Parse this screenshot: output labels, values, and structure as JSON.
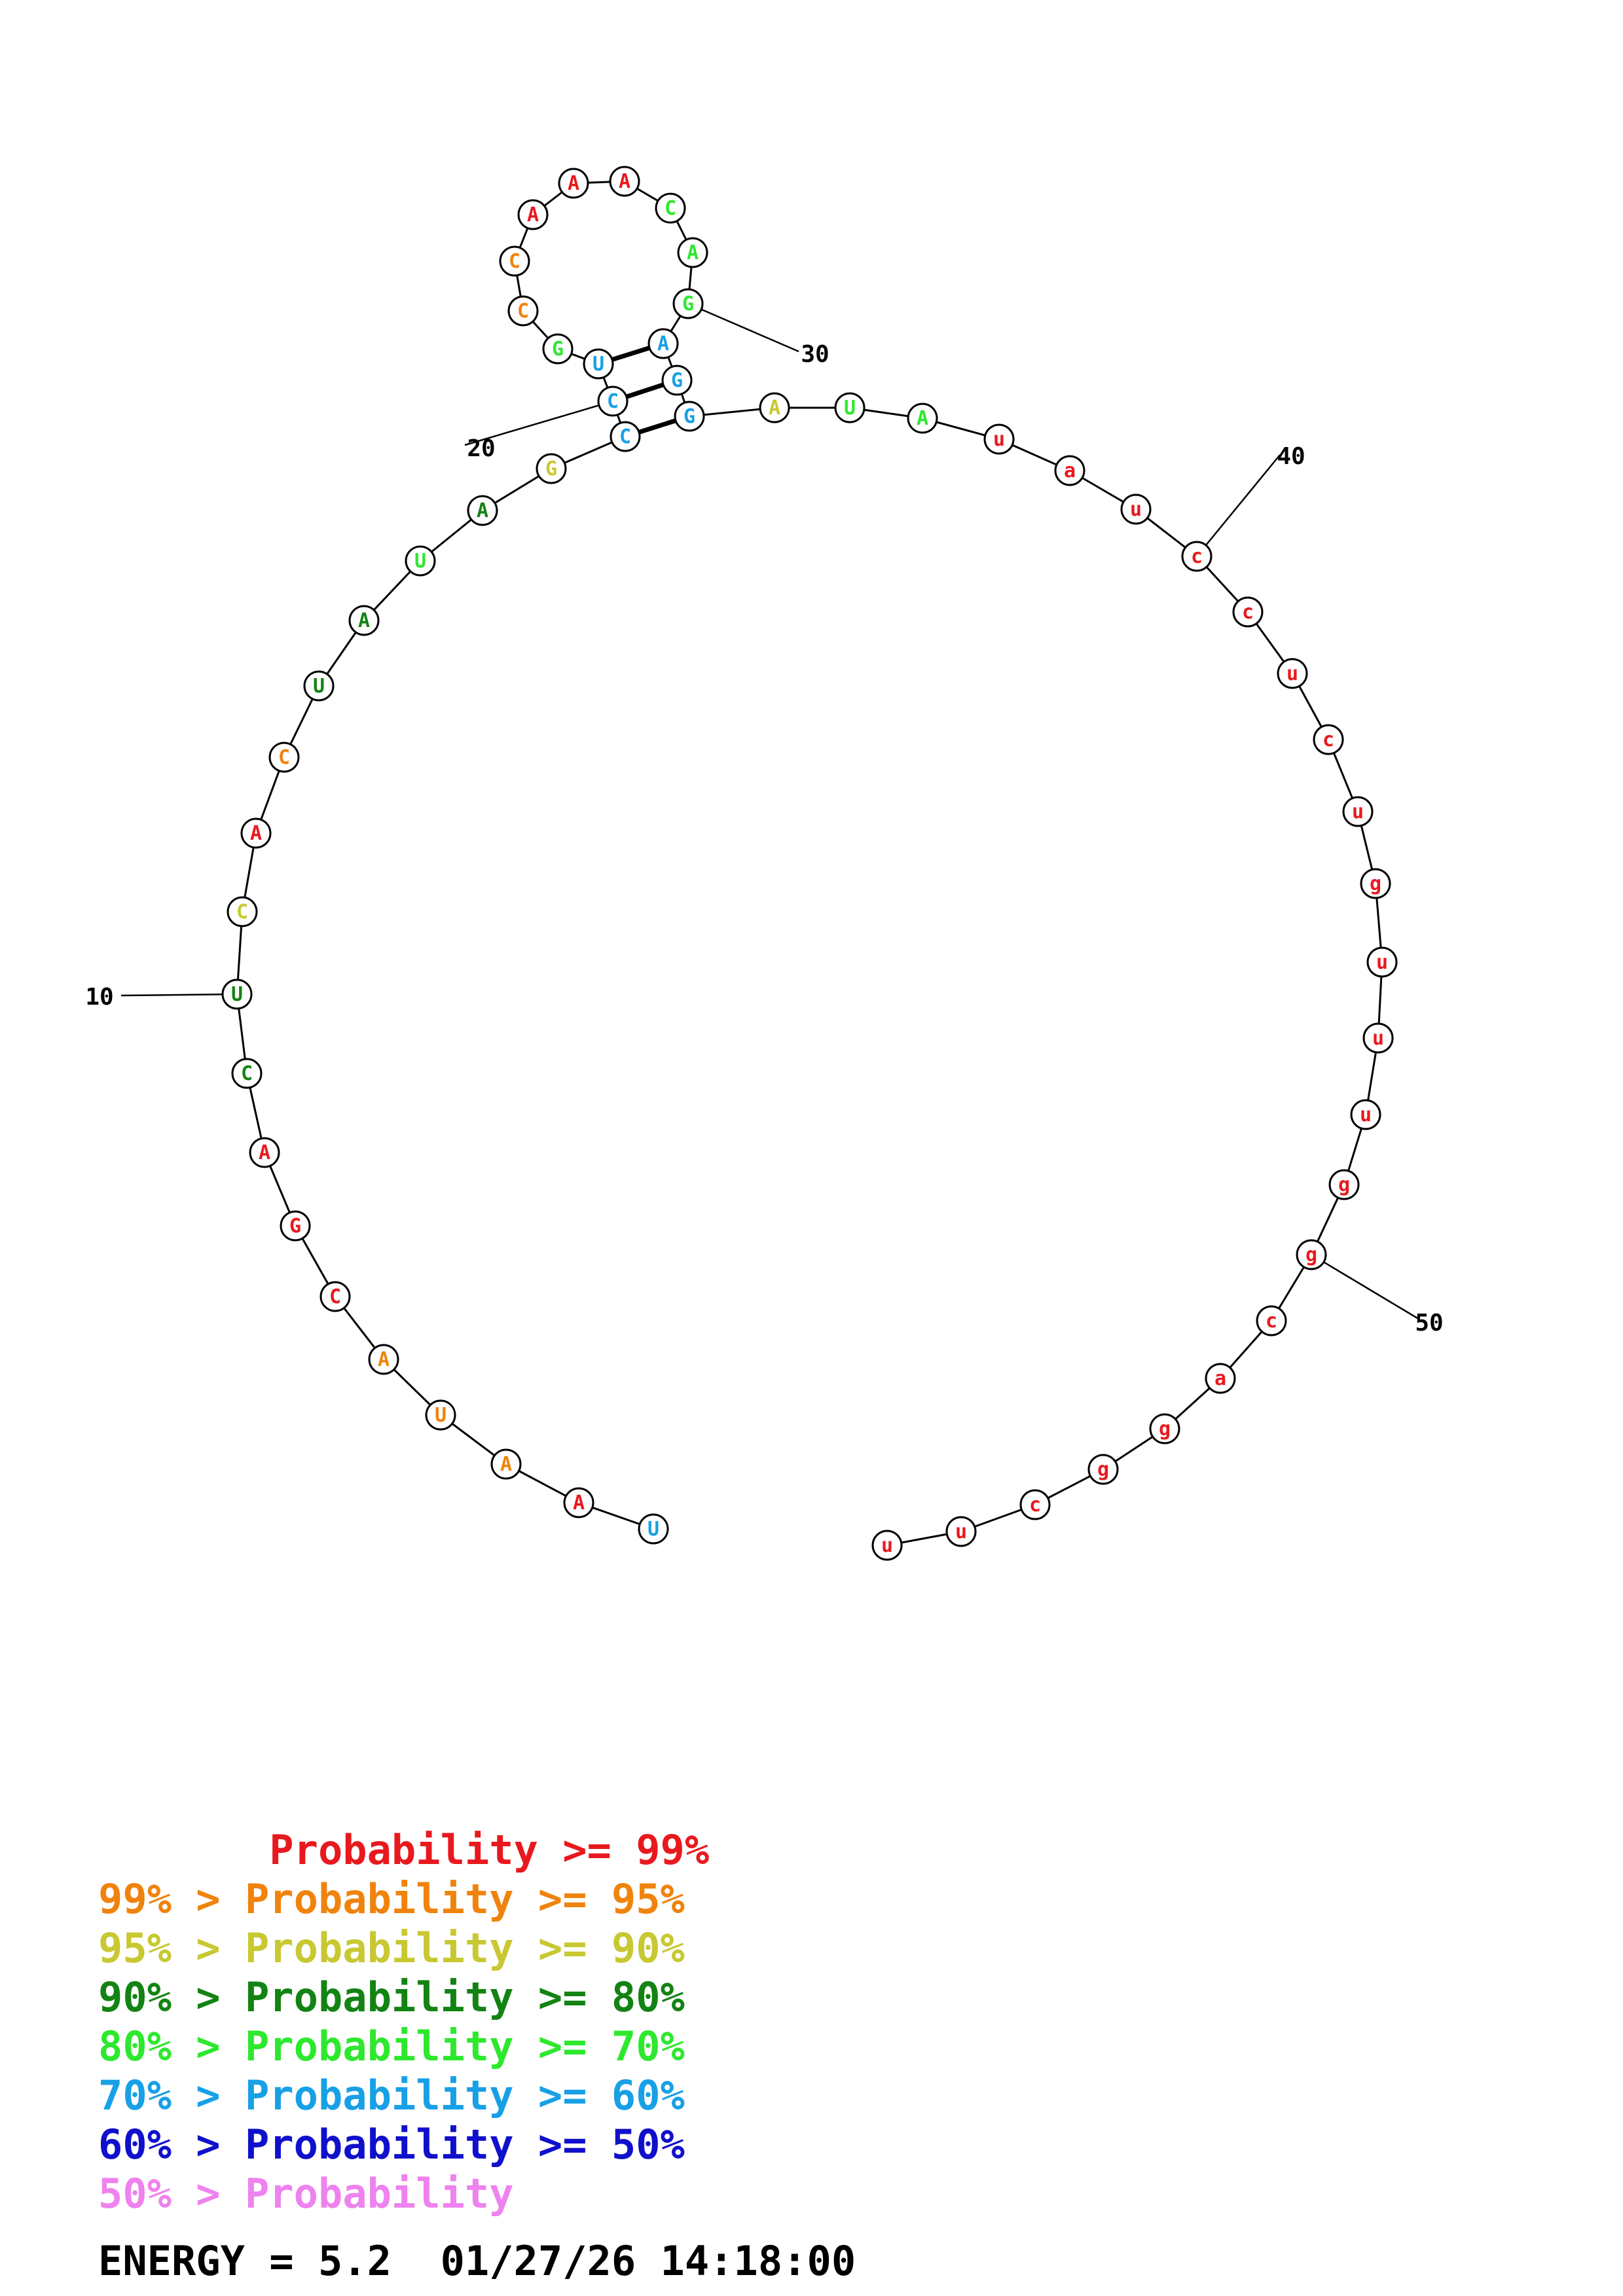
{
  "colors": {
    "p99": "#e8191e",
    "p95": "#f0830d",
    "p90": "#c8c832",
    "p80": "#138313",
    "p70": "#2ee82e",
    "p60": "#18a0e6",
    "p50": "#1010cc",
    "plow": "#ee82ee"
  },
  "sequence": [
    {
      "n": 1,
      "base": "U",
      "prob": "p60"
    },
    {
      "n": 2,
      "base": "A",
      "prob": "p99"
    },
    {
      "n": 3,
      "base": "A",
      "prob": "p95"
    },
    {
      "n": 4,
      "base": "U",
      "prob": "p95"
    },
    {
      "n": 5,
      "base": "A",
      "prob": "p95"
    },
    {
      "n": 6,
      "base": "C",
      "prob": "p99"
    },
    {
      "n": 7,
      "base": "G",
      "prob": "p99"
    },
    {
      "n": 8,
      "base": "A",
      "prob": "p99"
    },
    {
      "n": 9,
      "base": "C",
      "prob": "p80"
    },
    {
      "n": 10,
      "base": "U",
      "prob": "p80"
    },
    {
      "n": 11,
      "base": "C",
      "prob": "p90"
    },
    {
      "n": 12,
      "base": "A",
      "prob": "p99"
    },
    {
      "n": 13,
      "base": "C",
      "prob": "p95"
    },
    {
      "n": 14,
      "base": "U",
      "prob": "p80"
    },
    {
      "n": 15,
      "base": "A",
      "prob": "p80"
    },
    {
      "n": 16,
      "base": "U",
      "prob": "p70"
    },
    {
      "n": 17,
      "base": "A",
      "prob": "p80"
    },
    {
      "n": 18,
      "base": "G",
      "prob": "p90"
    },
    {
      "n": 19,
      "base": "C",
      "prob": "p60"
    },
    {
      "n": 20,
      "base": "C",
      "prob": "p60"
    },
    {
      "n": 21,
      "base": "U",
      "prob": "p60"
    },
    {
      "n": 22,
      "base": "G",
      "prob": "p70"
    },
    {
      "n": 23,
      "base": "C",
      "prob": "p95"
    },
    {
      "n": 24,
      "base": "C",
      "prob": "p95"
    },
    {
      "n": 25,
      "base": "A",
      "prob": "p99"
    },
    {
      "n": 26,
      "base": "A",
      "prob": "p99"
    },
    {
      "n": 27,
      "base": "A",
      "prob": "p99"
    },
    {
      "n": 28,
      "base": "C",
      "prob": "p70"
    },
    {
      "n": 29,
      "base": "A",
      "prob": "p70"
    },
    {
      "n": 30,
      "base": "G",
      "prob": "p70"
    },
    {
      "n": 31,
      "base": "A",
      "prob": "p60"
    },
    {
      "n": 32,
      "base": "G",
      "prob": "p60"
    },
    {
      "n": 33,
      "base": "G",
      "prob": "p60"
    },
    {
      "n": 34,
      "base": "A",
      "prob": "p90"
    },
    {
      "n": 35,
      "base": "U",
      "prob": "p70"
    },
    {
      "n": 36,
      "base": "A",
      "prob": "p70"
    },
    {
      "n": 37,
      "base": "u",
      "prob": "p99"
    },
    {
      "n": 38,
      "base": "a",
      "prob": "p99"
    },
    {
      "n": 39,
      "base": "u",
      "prob": "p99"
    },
    {
      "n": 40,
      "base": "c",
      "prob": "p99"
    },
    {
      "n": 41,
      "base": "c",
      "prob": "p99"
    },
    {
      "n": 42,
      "base": "u",
      "prob": "p99"
    },
    {
      "n": 43,
      "base": "c",
      "prob": "p99"
    },
    {
      "n": 44,
      "base": "u",
      "prob": "p99"
    },
    {
      "n": 45,
      "base": "g",
      "prob": "p99"
    },
    {
      "n": 46,
      "base": "u",
      "prob": "p99"
    },
    {
      "n": 47,
      "base": "u",
      "prob": "p99"
    },
    {
      "n": 48,
      "base": "u",
      "prob": "p99"
    },
    {
      "n": 49,
      "base": "g",
      "prob": "p99"
    },
    {
      "n": 50,
      "base": "g",
      "prob": "p99"
    },
    {
      "n": 51,
      "base": "c",
      "prob": "p99"
    },
    {
      "n": 52,
      "base": "a",
      "prob": "p99"
    },
    {
      "n": 53,
      "base": "g",
      "prob": "p99"
    },
    {
      "n": 54,
      "base": "g",
      "prob": "p99"
    },
    {
      "n": 55,
      "base": "c",
      "prob": "p99"
    },
    {
      "n": 56,
      "base": "u",
      "prob": "p99"
    },
    {
      "n": 57,
      "base": "u",
      "prob": "p99"
    }
  ],
  "pairs": [
    [
      19,
      33
    ],
    [
      20,
      32
    ],
    [
      21,
      31
    ]
  ],
  "ticks": [
    {
      "n": 10,
      "label": "10"
    },
    {
      "n": 20,
      "label": "20"
    },
    {
      "n": 30,
      "label": "30"
    },
    {
      "n": 40,
      "label": "40"
    },
    {
      "n": 50,
      "label": "50"
    }
  ],
  "legend": [
    {
      "text": "       Probability >= 99%",
      "prob": "p99"
    },
    {
      "text": "99% > Probability >= 95%",
      "prob": "p95"
    },
    {
      "text": "95% > Probability >= 90%",
      "prob": "p90"
    },
    {
      "text": "90% > Probability >= 80%",
      "prob": "p80"
    },
    {
      "text": "80% > Probability >= 70%",
      "prob": "p70"
    },
    {
      "text": "70% > Probability >= 60%",
      "prob": "p60"
    },
    {
      "text": "60% > Probability >= 50%",
      "prob": "p50"
    },
    {
      "text": "50% > Probability",
      "prob": "plow"
    }
  ],
  "energy": {
    "text": "ENERGY = 5.2  01/27/26 14:18:00"
  }
}
